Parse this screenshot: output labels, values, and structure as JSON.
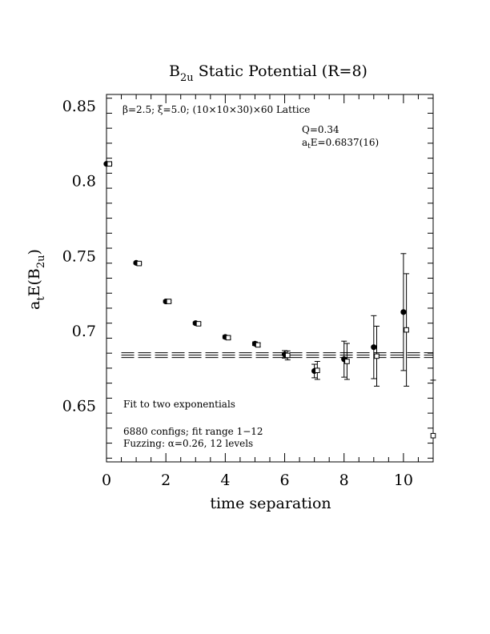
{
  "chart_data": {
    "type": "scatter",
    "title": "B",
    "title_sub": "2u",
    "title_rest": " Static Potential (R=8)",
    "xlabel": "time separation",
    "ylabel_main": "a",
    "ylabel_sub1": "t",
    "ylabel_mid": "E(B",
    "ylabel_sub2": "2u",
    "ylabel_end": ")",
    "xlim": [
      0,
      11
    ],
    "ylim": [
      0.6125,
      0.8575
    ],
    "x_ticks": [
      0,
      2,
      4,
      6,
      8,
      10
    ],
    "x_tick_labels": [
      "0",
      "2",
      "4",
      "6",
      "8",
      "10"
    ],
    "y_ticks": [
      0.65,
      0.7,
      0.75,
      0.8,
      0.85
    ],
    "y_tick_labels": [
      "0.65",
      "0.7",
      "0.75",
      "0.8",
      "0.85"
    ],
    "grid": false,
    "annotations": {
      "lattice": "β=2.5; ξ=5.0; (10×10×30)×60 Lattice",
      "q": "Q=0.34",
      "energy_prefix": "a",
      "energy_sub": "t",
      "energy_rest": "E=0.6837(16)",
      "fit": "Fit to two exponentials",
      "configs": "6880 configs; fit range 1−12",
      "fuzzing": "Fuzzing: α=0.26, 12 levels"
    },
    "fit_band": {
      "x": [
        0.5,
        11
      ],
      "center": 0.6837,
      "lower": 0.6821,
      "upper": 0.6853
    },
    "series": [
      {
        "marker": "filled-circle",
        "points": [
          {
            "x": 0,
            "y": 0.8112,
            "err": 0.0006
          },
          {
            "x": 1,
            "y": 0.7452,
            "err": 0.0007
          },
          {
            "x": 2,
            "y": 0.7195,
            "err": 0.0008
          },
          {
            "x": 3,
            "y": 0.705,
            "err": 0.0008
          },
          {
            "x": 4,
            "y": 0.6958,
            "err": 0.001
          },
          {
            "x": 5,
            "y": 0.6913,
            "err": 0.0012
          },
          {
            "x": 6,
            "y": 0.6842,
            "err": 0.0025
          },
          {
            "x": 7,
            "y": 0.6731,
            "err": 0.0045
          },
          {
            "x": 8,
            "y": 0.681,
            "err": 0.012
          },
          {
            "x": 9,
            "y": 0.689,
            "err": 0.021
          },
          {
            "x": 10,
            "y": 0.7124,
            "err": 0.039
          }
        ]
      },
      {
        "marker": "open-square",
        "points": [
          {
            "x": 0.1,
            "y": 0.8112,
            "err": 0.0005
          },
          {
            "x": 1.1,
            "y": 0.7448,
            "err": 0.0006
          },
          {
            "x": 2.1,
            "y": 0.7195,
            "err": 0.0007
          },
          {
            "x": 3.1,
            "y": 0.7046,
            "err": 0.0008
          },
          {
            "x": 4.1,
            "y": 0.6953,
            "err": 0.001
          },
          {
            "x": 5.1,
            "y": 0.6905,
            "err": 0.0013
          },
          {
            "x": 6.1,
            "y": 0.6835,
            "err": 0.003
          },
          {
            "x": 7.1,
            "y": 0.6735,
            "err": 0.006
          },
          {
            "x": 8.1,
            "y": 0.6795,
            "err": 0.012
          },
          {
            "x": 9.1,
            "y": 0.683,
            "err": 0.02
          },
          {
            "x": 10.1,
            "y": 0.7005,
            "err": 0.0375
          },
          {
            "x": 11.0,
            "y": 0.63,
            "err": 0.037
          }
        ]
      }
    ]
  }
}
